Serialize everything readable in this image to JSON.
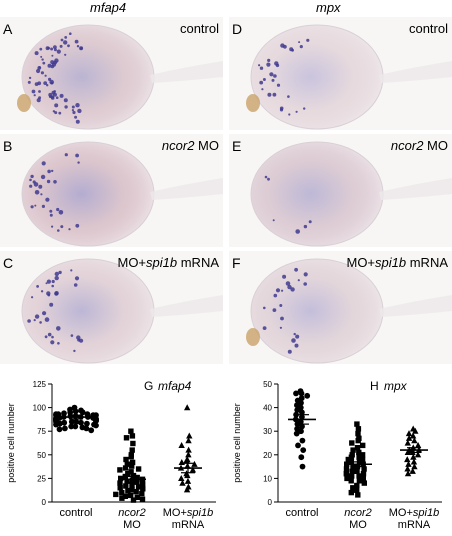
{
  "columns": [
    {
      "title": "mfap4"
    },
    {
      "title": "mpx"
    }
  ],
  "panels": [
    {
      "letter": "A",
      "pre": "",
      "gene": "",
      "post": "control",
      "dots": 70,
      "stain": "#8a7fb7",
      "yolk": "#c9a7b4",
      "tail": true
    },
    {
      "letter": "D",
      "pre": "",
      "gene": "",
      "post": "control",
      "dots": 28,
      "stain": "#a49acb",
      "yolk": "#d9c3cb",
      "tail": true
    },
    {
      "letter": "B",
      "pre": "",
      "gene": "ncor2",
      "post": " MO",
      "dots": 30,
      "stain": "#7d70b3",
      "yolk": "#c79fad",
      "tail": false
    },
    {
      "letter": "E",
      "pre": "",
      "gene": "ncor2",
      "post": " MO",
      "dots": 6,
      "stain": "#8f86bf",
      "yolk": "#c8aab9",
      "tail": false
    },
    {
      "letter": "C",
      "pre": "MO+",
      "gene": "spi1b",
      "post": " mRNA",
      "dots": 35,
      "stain": "#8d83bd",
      "yolk": "#d2b6c1",
      "tail": false
    },
    {
      "letter": "F",
      "pre": "MO+",
      "gene": "spi1b",
      "post": " mRNA",
      "dots": 22,
      "stain": "#9a90c6",
      "yolk": "#d3bcc6",
      "tail": true
    }
  ],
  "chart_data": [
    {
      "type": "scatter",
      "panel": "G",
      "title": "mfap4",
      "ylabel": "positive cell number",
      "ylim": [
        0,
        125
      ],
      "yticks": [
        0,
        25,
        50,
        75,
        100,
        125
      ],
      "groups": [
        {
          "label_pre": "control",
          "label_gene": "",
          "label_line2": "",
          "marker": "circle",
          "mean": 90,
          "sem": 2,
          "values": [
            100,
            98,
            97,
            96,
            95,
            95,
            94,
            93,
            93,
            92,
            92,
            91,
            91,
            90,
            90,
            90,
            89,
            89,
            89,
            88,
            88,
            88,
            87,
            87,
            87,
            86,
            86,
            85,
            85,
            84,
            84,
            83,
            83,
            82,
            82,
            81,
            80,
            80,
            79,
            78,
            78,
            77,
            76,
            92,
            93,
            86,
            85,
            88
          ]
        },
        {
          "label_pre": "",
          "label_gene": "ncor2",
          "label_line2": "MO",
          "marker": "square",
          "mean": 24,
          "sem": 3,
          "values": [
            75,
            70,
            68,
            62,
            55,
            50,
            48,
            45,
            42,
            40,
            38,
            36,
            35,
            34,
            32,
            30,
            28,
            27,
            26,
            25,
            24,
            23,
            22,
            21,
            20,
            19,
            18,
            17,
            16,
            15,
            14,
            13,
            12,
            11,
            10,
            9,
            8,
            7,
            6,
            5,
            4,
            3,
            2
          ]
        },
        {
          "label_pre": "MO+",
          "label_gene": "spi1b",
          "label_line2": "mRNA",
          "marker": "triangle",
          "mean": 36,
          "sem": 5,
          "values": [
            100,
            70,
            65,
            60,
            55,
            50,
            45,
            44,
            42,
            40,
            38,
            36,
            34,
            30,
            28,
            25,
            22,
            20,
            16,
            13
          ]
        }
      ]
    },
    {
      "type": "scatter",
      "panel": "H",
      "title": "mpx",
      "ylabel": "positive cell number",
      "ylim": [
        0,
        50
      ],
      "yticks": [
        0,
        10,
        20,
        30,
        40,
        50
      ],
      "groups": [
        {
          "label_pre": "control",
          "label_gene": "",
          "label_line2": "",
          "marker": "circle",
          "mean": 35,
          "sem": 2,
          "values": [
            47,
            46,
            46,
            45,
            44,
            43,
            42,
            41,
            40,
            39,
            38,
            37,
            36,
            35,
            34,
            33,
            32,
            31,
            30,
            29,
            26,
            24,
            22,
            19,
            15
          ]
        },
        {
          "label_pre": "",
          "label_gene": "ncor2",
          "label_line2": "MO",
          "marker": "square",
          "mean": 16,
          "sem": 1,
          "values": [
            33,
            31,
            29,
            27,
            26,
            25,
            24,
            23,
            22,
            21,
            20,
            20,
            19,
            19,
            18,
            18,
            17,
            17,
            16,
            16,
            15,
            15,
            14,
            14,
            13,
            13,
            12,
            12,
            11,
            11,
            10,
            10,
            9,
            9,
            8,
            7,
            6,
            5,
            4,
            3
          ]
        },
        {
          "label_pre": "MO+",
          "label_gene": "spi1b",
          "label_line2": "mRNA",
          "marker": "triangle",
          "mean": 22,
          "sem": 1,
          "values": [
            31,
            30,
            29,
            28,
            27,
            26,
            25,
            24,
            23,
            22,
            22,
            21,
            21,
            20,
            19,
            18,
            17,
            16,
            15,
            14,
            13,
            12
          ]
        }
      ]
    }
  ]
}
